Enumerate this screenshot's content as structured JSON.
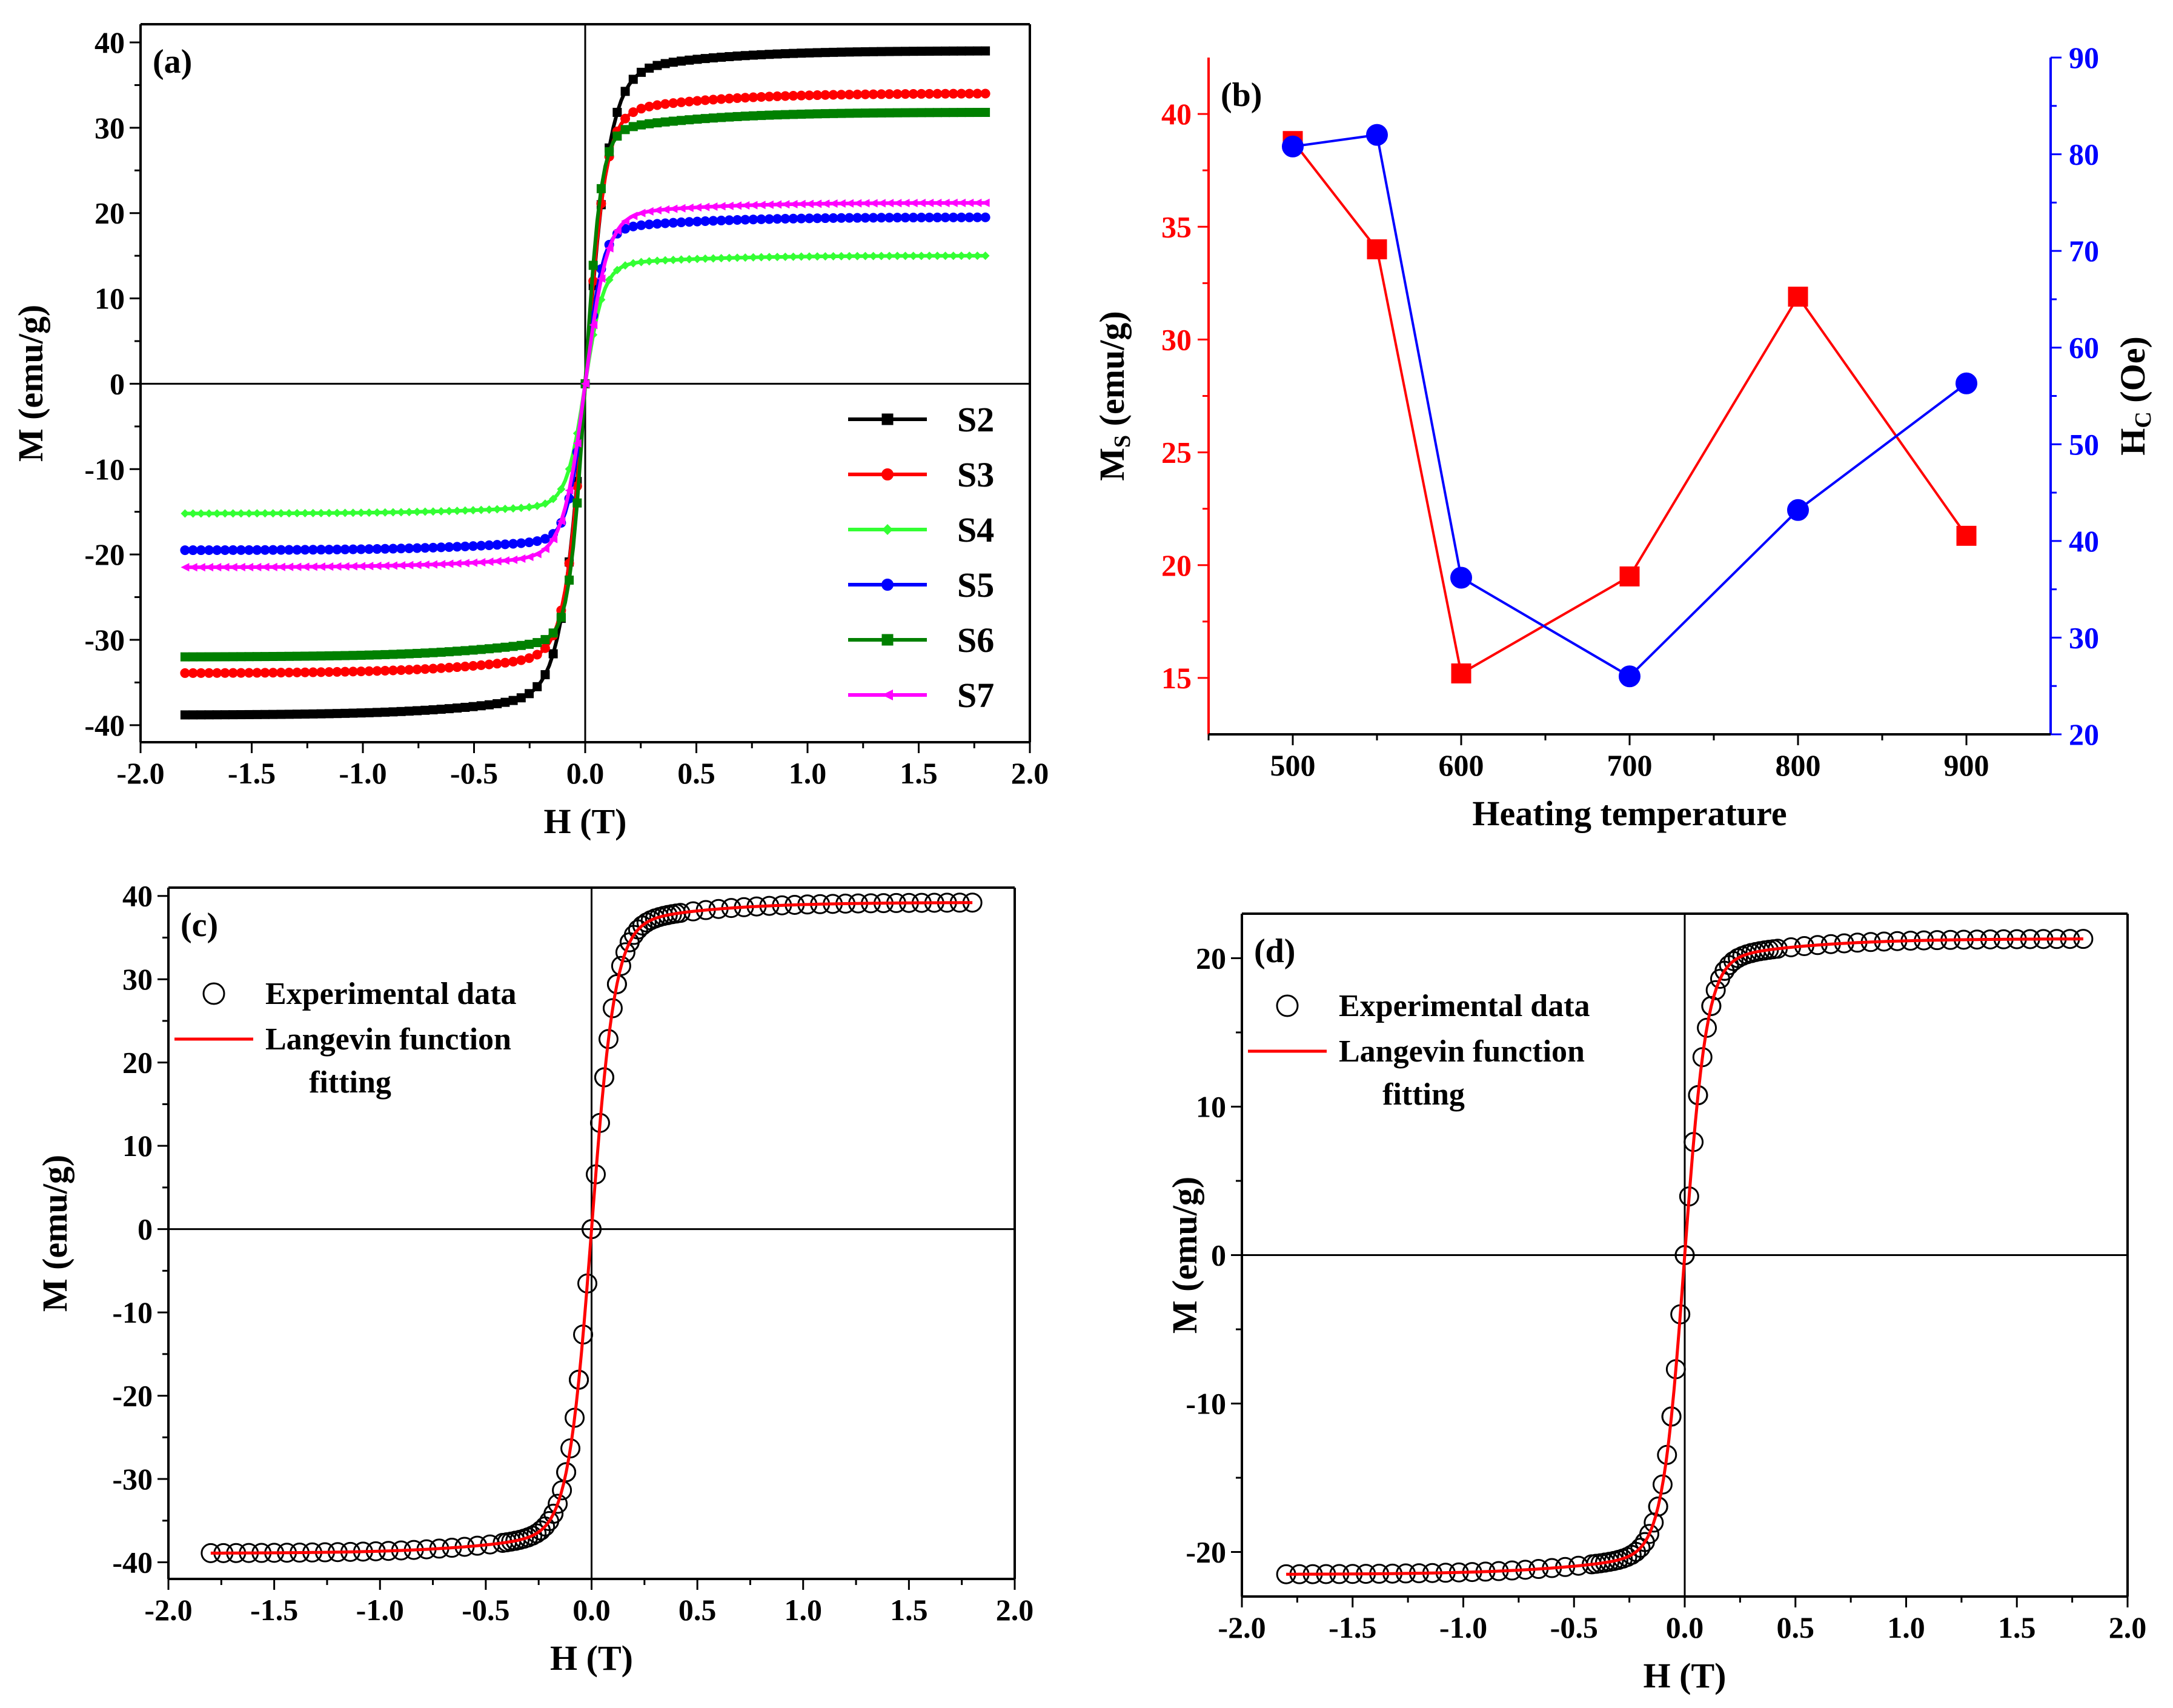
{
  "chart_data": [
    {
      "id": "a",
      "type": "line",
      "panel_label": "(a)",
      "xlabel": "H (T)",
      "ylabel": "M (emu/g)",
      "xlim": [
        -2.0,
        2.0
      ],
      "ylim": [
        -42,
        40
      ],
      "xticks": [
        -2.0,
        -1.5,
        -1.0,
        -0.5,
        0.0,
        0.5,
        1.0,
        1.5,
        2.0
      ],
      "xtick_labels": [
        "-2.0",
        "-1.5",
        "-1.0",
        "-0.5",
        "0.0",
        "0.5",
        "1.0",
        "1.5",
        "2.0"
      ],
      "yticks": [
        -40,
        -30,
        -20,
        -10,
        0,
        10,
        20,
        30,
        40
      ],
      "ytick_labels": [
        "-40",
        "-30",
        "-20",
        "-10",
        "0",
        "10",
        "20",
        "30",
        "40"
      ],
      "legend_position": "bottom-right",
      "x_range": [
        -1.8,
        1.8
      ],
      "series": [
        {
          "name": "S2",
          "color": "#000000",
          "marker": "square",
          "saturation": 39.0,
          "neg_saturation": -38.8,
          "steepness": 9,
          "slope": 0.6
        },
        {
          "name": "S3",
          "color": "#ff0000",
          "marker": "circle",
          "saturation": 34.0,
          "neg_saturation": -33.9,
          "steepness": 11,
          "slope": 0.5
        },
        {
          "name": "S4",
          "color": "#33ff33",
          "marker": "diamond",
          "saturation": 15.0,
          "neg_saturation": -15.2,
          "steepness": 12,
          "slope": 0.25
        },
        {
          "name": "S5",
          "color": "#0000ff",
          "marker": "circle",
          "saturation": 19.5,
          "neg_saturation": -19.5,
          "steepness": 13,
          "slope": 0.3
        },
        {
          "name": "S6",
          "color": "#008000",
          "marker": "square",
          "saturation": 31.8,
          "neg_saturation": -32.0,
          "steepness": 14,
          "slope": 0.5
        },
        {
          "name": "S7",
          "color": "#ff00ff",
          "marker": "triangle-left",
          "saturation": 21.2,
          "neg_saturation": -21.5,
          "steepness": 10,
          "slope": 0.8
        }
      ]
    },
    {
      "id": "b",
      "type": "line",
      "panel_label": "(b)",
      "xlabel": "Heating temperature",
      "ylabel_left": "Ms (emu/g)",
      "ylabel_left_main": "M",
      "ylabel_left_sub": "S",
      "ylabel_left_rest": " (emu/g)",
      "ylabel_right": "Hc (Oe)",
      "ylabel_right_main": "H",
      "ylabel_right_sub": "C",
      "ylabel_right_rest": " (Oe)",
      "xlim": [
        450,
        950
      ],
      "ylim_left": [
        12.5,
        42.5
      ],
      "ylim_right": [
        20,
        90
      ],
      "xticks": [
        500,
        600,
        700,
        800,
        900
      ],
      "xtick_labels": [
        "500",
        "600",
        "700",
        "800",
        "900"
      ],
      "yticks_left": [
        15,
        20,
        25,
        30,
        35,
        40
      ],
      "ytick_labels_left": [
        "15",
        "20",
        "25",
        "30",
        "35",
        "40"
      ],
      "yticks_right": [
        20,
        30,
        40,
        50,
        60,
        70,
        80,
        90
      ],
      "ytick_labels_right": [
        "20",
        "30",
        "40",
        "50",
        "60",
        "70",
        "80",
        "90"
      ],
      "left_color": "#ff0000",
      "right_color": "#0000ff",
      "x": [
        500,
        550,
        600,
        700,
        800,
        900
      ],
      "series": [
        {
          "name": "Ms",
          "axis": "left",
          "color": "#ff0000",
          "marker": "square",
          "values": [
            38.8,
            34.0,
            15.2,
            19.5,
            31.9,
            21.3
          ]
        },
        {
          "name": "Hc",
          "axis": "right",
          "color": "#0000ff",
          "marker": "circle",
          "values": [
            80.8,
            82.0,
            36.2,
            26.0,
            43.2,
            56.3
          ]
        }
      ]
    },
    {
      "id": "c",
      "type": "scatter",
      "panel_label": "(c)",
      "xlabel": "H (T)",
      "ylabel": "M (emu/g)",
      "xlim": [
        -2.0,
        2.0
      ],
      "ylim": [
        -42,
        41
      ],
      "xticks": [
        -2.0,
        -1.5,
        -1.0,
        -0.5,
        0.0,
        0.5,
        1.0,
        1.5,
        2.0
      ],
      "xtick_labels": [
        "-2.0",
        "-1.5",
        "-1.0",
        "-0.5",
        "0.0",
        "0.5",
        "1.0",
        "1.5",
        "2.0"
      ],
      "yticks": [
        -40,
        -30,
        -20,
        -10,
        0,
        10,
        20,
        30,
        40
      ],
      "ytick_labels": [
        "-40",
        "-30",
        "-20",
        "-10",
        "0",
        "10",
        "20",
        "30",
        "40"
      ],
      "legend_position": "top-left",
      "legend": {
        "experimental": "Experimental data",
        "fit_line1": "Langevin function",
        "fit_line2": "fitting"
      },
      "x_range": [
        -1.8,
        1.8
      ],
      "saturation": 39.2,
      "neg_saturation": -38.9,
      "steepness": 9,
      "slope": 0.6
    },
    {
      "id": "d",
      "type": "scatter",
      "panel_label": "(d)",
      "xlabel": "H (T)",
      "ylabel": "M (emu/g)",
      "xlim": [
        -2.0,
        2.0
      ],
      "ylim": [
        -23,
        23
      ],
      "xticks": [
        -2.0,
        -1.5,
        -1.0,
        -0.5,
        0.0,
        0.5,
        1.0,
        1.5,
        2.0
      ],
      "xtick_labels": [
        "-2.0",
        "-1.5",
        "-1.0",
        "-0.5",
        "0.0",
        "0.5",
        "1.0",
        "1.5",
        "2.0"
      ],
      "yticks": [
        -20,
        -10,
        0,
        10,
        20
      ],
      "ytick_labels": [
        "-20",
        "-10",
        "0",
        "10",
        "20"
      ],
      "legend_position": "top-left",
      "legend": {
        "experimental": "Experimental data",
        "fit_line1": "Langevin function",
        "fit_line2": "fitting"
      },
      "x_range": [
        -1.8,
        1.8
      ],
      "saturation": 21.3,
      "neg_saturation": -21.5,
      "steepness": 10,
      "slope": 0.8
    }
  ]
}
